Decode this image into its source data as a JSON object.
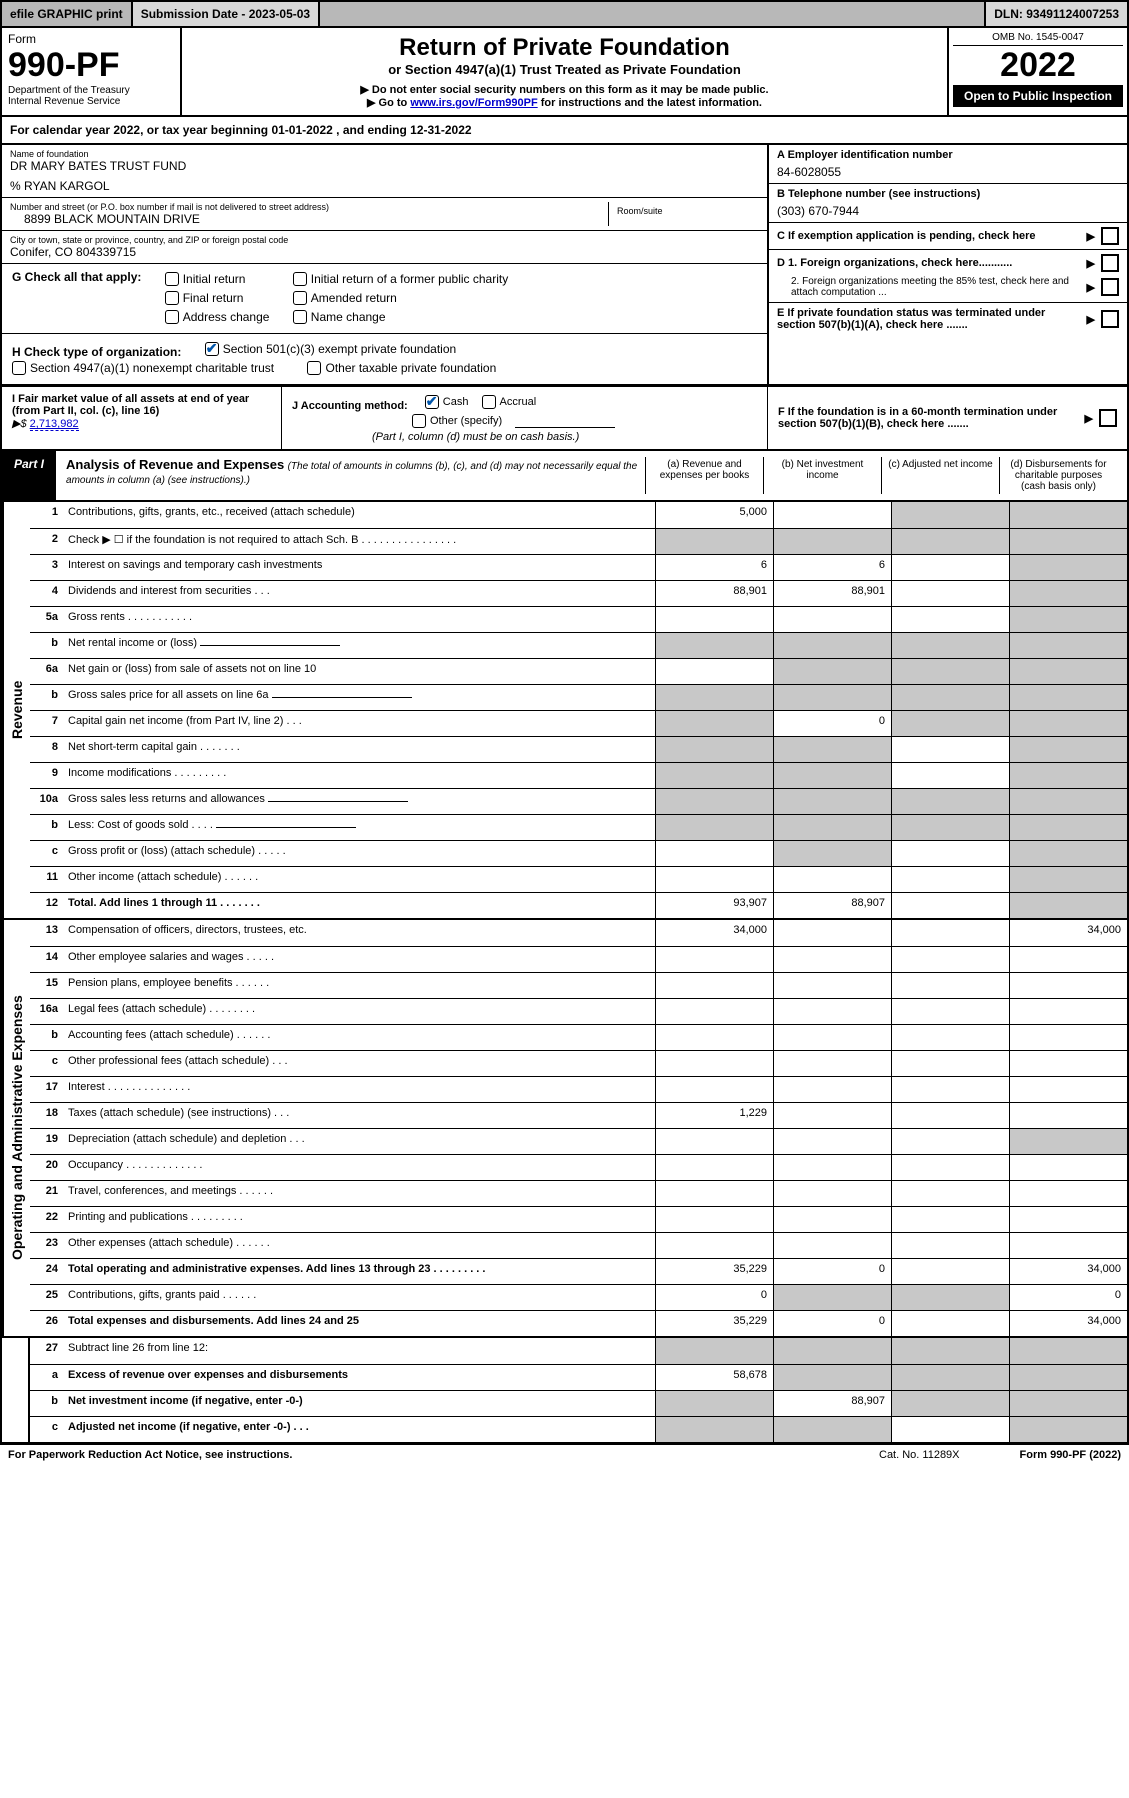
{
  "topbar": {
    "efile": "efile GRAPHIC print",
    "subdate_label": "Submission Date - 2023-05-03",
    "dln": "DLN: 93491124007253"
  },
  "header": {
    "form_word": "Form",
    "form_no": "990-PF",
    "dept": "Department of the Treasury",
    "irs": "Internal Revenue Service",
    "title": "Return of Private Foundation",
    "subtitle": "or Section 4947(a)(1) Trust Treated as Private Foundation",
    "note1": "▶ Do not enter social security numbers on this form as it may be made public.",
    "note2_pre": "▶ Go to ",
    "note2_link": "www.irs.gov/Form990PF",
    "note2_post": " for instructions and the latest information.",
    "omb": "OMB No. 1545-0047",
    "year": "2022",
    "open_pub": "Open to Public Inspection"
  },
  "cal_year": "For calendar year 2022, or tax year beginning 01-01-2022                , and ending 12-31-2022",
  "entity": {
    "name_label": "Name of foundation",
    "name": "DR MARY BATES TRUST FUND",
    "co": "% RYAN KARGOL",
    "street_label": "Number and street (or P.O. box number if mail is not delivered to street address)",
    "street": "8899 BLACK MOUNTAIN DRIVE",
    "room_label": "Room/suite",
    "city_label": "City or town, state or province, country, and ZIP or foreign postal code",
    "city": "Conifer, CO  804339715",
    "a_label": "A Employer identification number",
    "a_val": "84-6028055",
    "b_label": "B Telephone number (see instructions)",
    "b_val": "(303) 670-7944",
    "c_label": "C If exemption application is pending, check here",
    "d1_label": "D 1. Foreign organizations, check here...........",
    "d2_label": "2. Foreign organizations meeting the 85% test, check here and attach computation ...",
    "e_label": "E  If private foundation status was terminated under section 507(b)(1)(A), check here .......",
    "f_label": "F  If the foundation is in a 60-month termination under section 507(b)(1)(B), check here ......."
  },
  "g": {
    "label": "G Check all that apply:",
    "opts": [
      "Initial return",
      "Final return",
      "Address change",
      "Initial return of a former public charity",
      "Amended return",
      "Name change"
    ]
  },
  "h": {
    "label": "H Check type of organization:",
    "opt1": "Section 501(c)(3) exempt private foundation",
    "opt2": "Section 4947(a)(1) nonexempt charitable trust",
    "opt3": "Other taxable private foundation"
  },
  "i": {
    "label": "I Fair market value of all assets at end of year (from Part II, col. (c), line 16)",
    "arrow": "▶$",
    "val": "2,713,982"
  },
  "j": {
    "label": "J Accounting method:",
    "cash": "Cash",
    "accrual": "Accrual",
    "other": "Other (specify)",
    "note": "(Part I, column (d) must be on cash basis.)"
  },
  "part1": {
    "tag": "Part I",
    "title": "Analysis of Revenue and Expenses",
    "note": "(The total of amounts in columns (b), (c), and (d) may not necessarily equal the amounts in column (a) (see instructions).)",
    "col_a": "(a)   Revenue and expenses per books",
    "col_b": "(b)   Net investment income",
    "col_c": "(c)   Adjusted net income",
    "col_d": "(d)   Disbursements for charitable purposes (cash basis only)"
  },
  "side_labels": {
    "rev": "Revenue",
    "opex": "Operating and Administrative Expenses"
  },
  "rows_rev": [
    {
      "n": "1",
      "label": "Contributions, gifts, grants, etc., received (attach schedule)",
      "a": "5,000",
      "b": "",
      "c": "grey",
      "d": "grey"
    },
    {
      "n": "2",
      "label": "Check ▶ ☐ if the foundation is not required to attach Sch. B   .  .  .  .  .  .  .  .  .  .  .  .  .  .  .  .",
      "a": "grey",
      "b": "grey",
      "c": "grey",
      "d": "grey"
    },
    {
      "n": "3",
      "label": "Interest on savings and temporary cash investments",
      "a": "6",
      "b": "6",
      "c": "",
      "d": "grey"
    },
    {
      "n": "4",
      "label": "Dividends and interest from securities   .   .   .",
      "a": "88,901",
      "b": "88,901",
      "c": "",
      "d": "grey"
    },
    {
      "n": "5a",
      "label": "Gross rents   .   .   .   .   .   .   .   .   .   .   .",
      "a": "",
      "b": "",
      "c": "",
      "d": "grey"
    },
    {
      "n": "b",
      "label": "Net rental income or (loss)",
      "a": "grey",
      "b": "grey",
      "c": "grey",
      "d": "grey",
      "inline": true
    },
    {
      "n": "6a",
      "label": "Net gain or (loss) from sale of assets not on line 10",
      "a": "",
      "b": "grey",
      "c": "grey",
      "d": "grey"
    },
    {
      "n": "b",
      "label": "Gross sales price for all assets on line 6a",
      "a": "grey",
      "b": "grey",
      "c": "grey",
      "d": "grey",
      "inline": true
    },
    {
      "n": "7",
      "label": "Capital gain net income (from Part IV, line 2)   .   .   .",
      "a": "grey",
      "b": "0",
      "c": "grey",
      "d": "grey"
    },
    {
      "n": "8",
      "label": "Net short-term capital gain   .   .   .   .   .   .   .",
      "a": "grey",
      "b": "grey",
      "c": "",
      "d": "grey"
    },
    {
      "n": "9",
      "label": "Income modifications   .   .   .   .   .   .   .   .   .",
      "a": "grey",
      "b": "grey",
      "c": "",
      "d": "grey"
    },
    {
      "n": "10a",
      "label": "Gross sales less returns and allowances",
      "a": "grey",
      "b": "grey",
      "c": "grey",
      "d": "grey",
      "inline": true
    },
    {
      "n": "b",
      "label": "Less: Cost of goods sold   .   .   .   .",
      "a": "grey",
      "b": "grey",
      "c": "grey",
      "d": "grey",
      "inline": true
    },
    {
      "n": "c",
      "label": "Gross profit or (loss) (attach schedule)   .   .   .   .   .",
      "a": "",
      "b": "grey",
      "c": "",
      "d": "grey"
    },
    {
      "n": "11",
      "label": "Other income (attach schedule)   .   .   .   .   .   .",
      "a": "",
      "b": "",
      "c": "",
      "d": "grey"
    },
    {
      "n": "12",
      "label": "Total. Add lines 1 through 11   .   .   .   .   .   .   .",
      "a": "93,907",
      "b": "88,907",
      "c": "",
      "d": "grey",
      "bold": true
    }
  ],
  "rows_opex": [
    {
      "n": "13",
      "label": "Compensation of officers, directors, trustees, etc.",
      "a": "34,000",
      "b": "",
      "c": "",
      "d": "34,000"
    },
    {
      "n": "14",
      "label": "Other employee salaries and wages   .   .   .   .   .",
      "a": "",
      "b": "",
      "c": "",
      "d": ""
    },
    {
      "n": "15",
      "label": "Pension plans, employee benefits   .   .   .   .   .   .",
      "a": "",
      "b": "",
      "c": "",
      "d": ""
    },
    {
      "n": "16a",
      "label": "Legal fees (attach schedule)  .   .   .   .   .   .   .   .",
      "a": "",
      "b": "",
      "c": "",
      "d": ""
    },
    {
      "n": "b",
      "label": "Accounting fees (attach schedule)   .   .   .   .   .   .",
      "a": "",
      "b": "",
      "c": "",
      "d": ""
    },
    {
      "n": "c",
      "label": "Other professional fees (attach schedule)   .   .   .",
      "a": "",
      "b": "",
      "c": "",
      "d": ""
    },
    {
      "n": "17",
      "label": "Interest  .   .   .   .   .   .   .   .   .   .   .   .   .   .",
      "a": "",
      "b": "",
      "c": "",
      "d": ""
    },
    {
      "n": "18",
      "label": "Taxes (attach schedule) (see instructions)   .   .   .",
      "a": "1,229",
      "b": "",
      "c": "",
      "d": ""
    },
    {
      "n": "19",
      "label": "Depreciation (attach schedule) and depletion   .   .   .",
      "a": "",
      "b": "",
      "c": "",
      "d": "grey"
    },
    {
      "n": "20",
      "label": "Occupancy  .   .   .   .   .   .   .   .   .   .   .   .   .",
      "a": "",
      "b": "",
      "c": "",
      "d": ""
    },
    {
      "n": "21",
      "label": "Travel, conferences, and meetings  .   .   .   .   .   .",
      "a": "",
      "b": "",
      "c": "",
      "d": ""
    },
    {
      "n": "22",
      "label": "Printing and publications  .   .   .   .   .   .   .   .   .",
      "a": "",
      "b": "",
      "c": "",
      "d": ""
    },
    {
      "n": "23",
      "label": "Other expenses (attach schedule)   .   .   .   .   .   .",
      "a": "",
      "b": "",
      "c": "",
      "d": ""
    },
    {
      "n": "24",
      "label": "Total operating and administrative expenses. Add lines 13 through 23  .   .   .   .   .   .   .   .   .",
      "a": "35,229",
      "b": "0",
      "c": "",
      "d": "34,000",
      "bold": true
    },
    {
      "n": "25",
      "label": "Contributions, gifts, grants paid   .   .   .   .   .   .",
      "a": "0",
      "b": "grey",
      "c": "grey",
      "d": "0"
    },
    {
      "n": "26",
      "label": "Total expenses and disbursements. Add lines 24 and 25",
      "a": "35,229",
      "b": "0",
      "c": "",
      "d": "34,000",
      "bold": true
    }
  ],
  "rows_bottom": [
    {
      "n": "27",
      "label": "Subtract line 26 from line 12:",
      "a": "grey",
      "b": "grey",
      "c": "grey",
      "d": "grey"
    },
    {
      "n": "a",
      "label": "Excess of revenue over expenses and disbursements",
      "a": "58,678",
      "b": "grey",
      "c": "grey",
      "d": "grey",
      "bold": true
    },
    {
      "n": "b",
      "label": "Net investment income (if negative, enter -0-)",
      "a": "grey",
      "b": "88,907",
      "c": "grey",
      "d": "grey",
      "bold": true
    },
    {
      "n": "c",
      "label": "Adjusted net income (if negative, enter -0-)   .   .   .",
      "a": "grey",
      "b": "grey",
      "c": "",
      "d": "grey",
      "bold": true
    }
  ],
  "footer": {
    "left": "For Paperwork Reduction Act Notice, see instructions.",
    "mid": "Cat. No. 11289X",
    "right": "Form 990-PF (2022)"
  },
  "colors": {
    "grey_bg": "#c8c8c8",
    "topbar_bg": "#b8b8b8",
    "link": "#0000cc",
    "check": "#0055aa"
  }
}
